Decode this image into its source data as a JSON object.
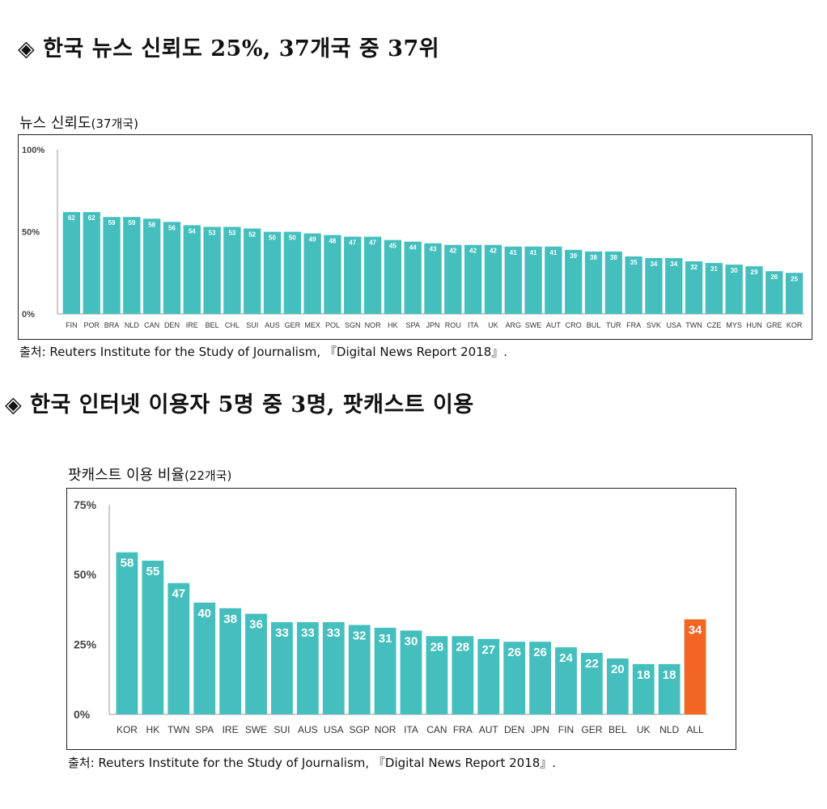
{
  "section1": {
    "heading": "◈ 한국 뉴스 신뢰도 25%, 37개국 중 37위",
    "subtitle": "뉴스 신뢰도",
    "subtitle_note": "(37개국)",
    "source": "출처: Reuters Institute for the Study of Journalism, 『Digital News Report 2018』."
  },
  "section2": {
    "heading": "◈ 한국 인터넷 이용자 5명 중 3명, 팟캐스트 이용",
    "subtitle": "팟캐스트 이용 비율",
    "subtitle_note": "(22개국)",
    "source": "출처: Reuters Institute for the Study of Journalism, 『Digital News Report 2018』."
  },
  "colors": {
    "bar": "#45bfbe",
    "highlight": "#f26522",
    "axis_text": "#444444"
  },
  "chart_data": [
    {
      "type": "bar",
      "categories": [
        "FIN",
        "POR",
        "BRA",
        "NLD",
        "CAN",
        "DEN",
        "IRE",
        "BEL",
        "CHL",
        "SUI",
        "AUS",
        "GER",
        "MEX",
        "POL",
        "SGN",
        "NOR",
        "HK",
        "SPA",
        "JPN",
        "ROU",
        "ITA",
        "UK",
        "ARG",
        "SWE",
        "AUT",
        "CRO",
        "BUL",
        "TUR",
        "FRA",
        "SVK",
        "USA",
        "TWN",
        "CZE",
        "MYS",
        "HUN",
        "GRE",
        "KOR"
      ],
      "values": [
        62,
        62,
        59,
        59,
        58,
        56,
        54,
        53,
        53,
        52,
        50,
        50,
        49,
        48,
        47,
        47,
        45,
        44,
        43,
        42,
        42,
        42,
        41,
        41,
        41,
        39,
        38,
        38,
        35,
        34,
        34,
        32,
        31,
        30,
        29,
        26,
        25
      ],
      "yticks": [
        "100%",
        "50%",
        "0%"
      ],
      "ylim": [
        0,
        100
      ],
      "grid": false
    },
    {
      "type": "bar",
      "categories": [
        "KOR",
        "HK",
        "TWN",
        "SPA",
        "IRE",
        "SWE",
        "SUI",
        "AUS",
        "USA",
        "SGP",
        "NOR",
        "ITA",
        "CAN",
        "FRA",
        "AUT",
        "DEN",
        "JPN",
        "FIN",
        "GER",
        "BEL",
        "UK",
        "NLD",
        "ALL"
      ],
      "values": [
        58,
        55,
        47,
        40,
        38,
        36,
        33,
        33,
        33,
        32,
        31,
        30,
        28,
        28,
        27,
        26,
        26,
        24,
        22,
        20,
        18,
        18,
        34
      ],
      "highlight_category": "ALL",
      "yticks": [
        "75%",
        "50%",
        "25%",
        "0%"
      ],
      "ylim": [
        0,
        75
      ],
      "grid": false
    }
  ]
}
